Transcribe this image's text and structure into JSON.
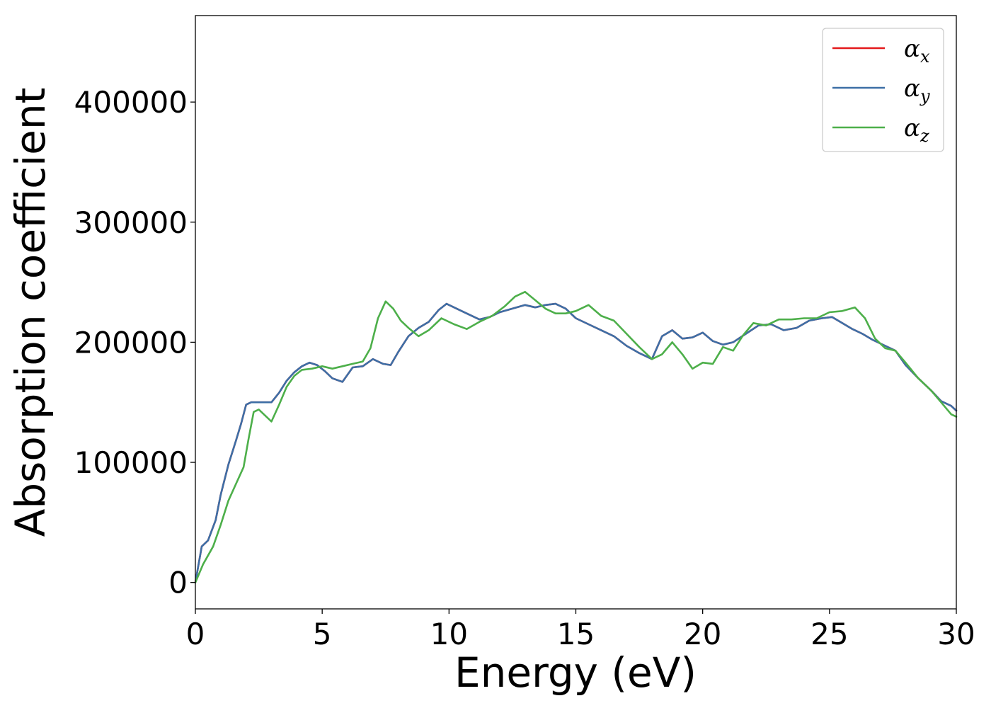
{
  "chart_data": {
    "type": "line",
    "title": "",
    "xlabel": "Energy (eV)",
    "ylabel": "Absorption coefficient",
    "xlim": [
      0,
      30
    ],
    "ylim": [
      -22000,
      472000
    ],
    "x_ticks": [
      0,
      5,
      10,
      15,
      20,
      25,
      30
    ],
    "y_ticks": [
      0,
      100000,
      200000,
      300000,
      400000
    ],
    "grid": false,
    "legend_position": "top-right",
    "series": [
      {
        "name": "α",
        "subscript": "x",
        "color": "#e41a1c",
        "x": [
          0,
          0.25,
          0.5,
          0.8,
          1.0,
          1.3,
          1.6,
          1.8,
          2.0,
          2.2,
          2.4,
          2.7,
          3.0,
          3.3,
          3.6,
          3.9,
          4.2,
          4.5,
          4.8,
          5.1,
          5.4,
          5.8,
          6.2,
          6.6,
          7.0,
          7.4,
          7.7,
          8.0,
          8.4,
          8.8,
          9.2,
          9.6,
          9.9,
          10.3,
          10.8,
          11.2,
          11.6,
          12.0,
          12.5,
          13.0,
          13.4,
          13.8,
          14.2,
          14.6,
          15.0,
          15.5,
          16.0,
          16.5,
          17.0,
          17.5,
          18.0,
          18.4,
          18.8,
          19.2,
          19.6,
          20.0,
          20.4,
          20.8,
          21.2,
          21.7,
          22.2,
          22.7,
          23.2,
          23.7,
          24.2,
          24.7,
          25.1,
          25.5,
          25.9,
          26.3,
          26.7,
          27.2,
          27.6,
          28.0,
          28.5,
          29.0,
          29.4,
          29.8,
          30.0
        ],
        "y": [
          0,
          30000,
          35000,
          52000,
          73000,
          98000,
          118000,
          132000,
          148000,
          150000,
          150000,
          150000,
          150000,
          158000,
          168000,
          175000,
          180000,
          183000,
          181000,
          176000,
          170000,
          167000,
          179000,
          180000,
          186000,
          182000,
          181000,
          192000,
          205000,
          212000,
          217000,
          227000,
          232000,
          228000,
          223000,
          219000,
          221000,
          225000,
          228000,
          231000,
          229000,
          231000,
          232000,
          228000,
          220000,
          215000,
          210000,
          205000,
          197000,
          191000,
          186000,
          205000,
          210000,
          203000,
          204000,
          208000,
          201000,
          198000,
          200000,
          207000,
          214000,
          215000,
          210000,
          212000,
          218000,
          220000,
          221000,
          216000,
          211000,
          207000,
          202000,
          197000,
          193000,
          181000,
          170000,
          160000,
          151000,
          147000,
          143000
        ]
      },
      {
        "name": "α",
        "subscript": "y",
        "color": "#3d6fa6",
        "x": [
          0,
          0.25,
          0.5,
          0.8,
          1.0,
          1.3,
          1.6,
          1.8,
          2.0,
          2.2,
          2.4,
          2.7,
          3.0,
          3.3,
          3.6,
          3.9,
          4.2,
          4.5,
          4.8,
          5.1,
          5.4,
          5.8,
          6.2,
          6.6,
          7.0,
          7.4,
          7.7,
          8.0,
          8.4,
          8.8,
          9.2,
          9.6,
          9.9,
          10.3,
          10.8,
          11.2,
          11.6,
          12.0,
          12.5,
          13.0,
          13.4,
          13.8,
          14.2,
          14.6,
          15.0,
          15.5,
          16.0,
          16.5,
          17.0,
          17.5,
          18.0,
          18.4,
          18.8,
          19.2,
          19.6,
          20.0,
          20.4,
          20.8,
          21.2,
          21.7,
          22.2,
          22.7,
          23.2,
          23.7,
          24.2,
          24.7,
          25.1,
          25.5,
          25.9,
          26.3,
          26.7,
          27.2,
          27.6,
          28.0,
          28.5,
          29.0,
          29.4,
          29.8,
          30.0
        ],
        "y": [
          0,
          30000,
          35000,
          52000,
          73000,
          98000,
          118000,
          132000,
          148000,
          150000,
          150000,
          150000,
          150000,
          158000,
          168000,
          175000,
          180000,
          183000,
          181000,
          176000,
          170000,
          167000,
          179000,
          180000,
          186000,
          182000,
          181000,
          192000,
          205000,
          212000,
          217000,
          227000,
          232000,
          228000,
          223000,
          219000,
          221000,
          225000,
          228000,
          231000,
          229000,
          231000,
          232000,
          228000,
          220000,
          215000,
          210000,
          205000,
          197000,
          191000,
          186000,
          205000,
          210000,
          203000,
          204000,
          208000,
          201000,
          198000,
          200000,
          207000,
          214000,
          215000,
          210000,
          212000,
          218000,
          220000,
          221000,
          216000,
          211000,
          207000,
          202000,
          197000,
          193000,
          181000,
          170000,
          160000,
          151000,
          147000,
          143000
        ]
      },
      {
        "name": "α",
        "subscript": "z",
        "color": "#4daf4a",
        "x": [
          0,
          0.3,
          0.7,
          1.0,
          1.3,
          1.6,
          1.9,
          2.1,
          2.3,
          2.5,
          2.8,
          3.0,
          3.3,
          3.6,
          3.9,
          4.2,
          4.6,
          5.0,
          5.4,
          5.8,
          6.2,
          6.6,
          6.9,
          7.2,
          7.5,
          7.8,
          8.1,
          8.4,
          8.8,
          9.2,
          9.7,
          10.2,
          10.7,
          11.2,
          11.7,
          12.2,
          12.6,
          13.0,
          13.4,
          13.8,
          14.2,
          14.6,
          15.0,
          15.5,
          16.0,
          16.5,
          17.0,
          17.5,
          18.0,
          18.4,
          18.8,
          19.2,
          19.6,
          20.0,
          20.4,
          20.8,
          21.2,
          21.6,
          22.0,
          22.5,
          23.0,
          23.5,
          24.0,
          24.5,
          25.0,
          25.5,
          26.0,
          26.4,
          26.8,
          27.2,
          27.6,
          28.0,
          28.5,
          29.0,
          29.4,
          29.8,
          30.0
        ],
        "y": [
          0,
          15000,
          30000,
          48000,
          68000,
          82000,
          96000,
          120000,
          142000,
          144000,
          138000,
          134000,
          148000,
          163000,
          172000,
          177000,
          178000,
          180000,
          178000,
          180000,
          182000,
          184000,
          195000,
          220000,
          234000,
          228000,
          218000,
          212000,
          205000,
          210000,
          220000,
          215000,
          211000,
          217000,
          222000,
          230000,
          238000,
          242000,
          235000,
          228000,
          224000,
          224000,
          226000,
          231000,
          222000,
          218000,
          207000,
          196000,
          186000,
          190000,
          200000,
          190000,
          178000,
          183000,
          182000,
          196000,
          193000,
          206000,
          216000,
          214000,
          219000,
          219000,
          220000,
          220000,
          225000,
          226000,
          229000,
          220000,
          203000,
          195000,
          193000,
          183000,
          170000,
          160000,
          150000,
          140000,
          138000
        ]
      }
    ]
  }
}
